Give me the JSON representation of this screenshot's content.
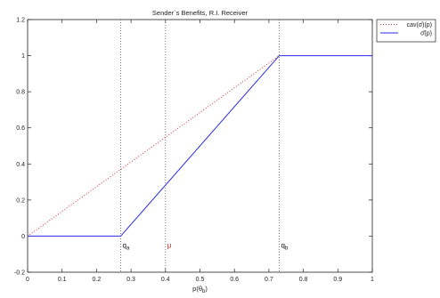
{
  "chart_data": {
    "type": "line",
    "title": "Sender`s Benefits, R.I. Receiver",
    "xlabel": "p(θ",
    "xlabel_sub": "b",
    "xlabel_close": ")",
    "ylabel": "",
    "xlim": [
      0,
      1
    ],
    "ylim": [
      -0.2,
      1.2
    ],
    "x_ticks": [
      0,
      0.1,
      0.2,
      0.3,
      0.4,
      0.5,
      0.6,
      0.7,
      0.8,
      0.9,
      1
    ],
    "x_tick_labels": [
      "0",
      "0.1",
      "0.2",
      "0.3",
      "0.4",
      "0.5",
      "0.6",
      "0.7",
      "0.8",
      "0.9",
      "1"
    ],
    "y_ticks": [
      -0.2,
      0,
      0.2,
      0.4,
      0.6,
      0.8,
      1,
      1.2
    ],
    "y_tick_labels": [
      "-0.2",
      "0",
      "0.2",
      "0.4",
      "0.6",
      "0.8",
      "1",
      "1.2"
    ],
    "grid": false,
    "legend_position": "outside-top-right",
    "series": [
      {
        "name": "cav(σ̂)(p)",
        "color": "#cc3333",
        "style": "dotted",
        "x": [
          0,
          0.73
        ],
        "y": [
          0,
          1
        ]
      },
      {
        "name": "σ̂(p)",
        "color": "#2a2ae6",
        "style": "solid",
        "x": [
          0,
          0.27,
          0.73,
          1
        ],
        "y": [
          0,
          0,
          1,
          1
        ]
      }
    ],
    "vertical_lines": [
      {
        "x": 0.27,
        "color": "#555555",
        "style": "dotted"
      },
      {
        "x": 0.4,
        "color": "#555555",
        "style": "dotted"
      },
      {
        "x": 0.73,
        "color": "#555555",
        "style": "dotted"
      }
    ],
    "annotations": [
      {
        "x": 0.27,
        "y": -0.05,
        "text": "q",
        "sub": "a",
        "color": "#111111"
      },
      {
        "x": 0.4,
        "y": -0.05,
        "text": "μ",
        "sub": "",
        "color": "#cc2222"
      },
      {
        "x": 0.73,
        "y": -0.05,
        "text": "q",
        "sub": "b",
        "color": "#111111"
      }
    ]
  }
}
